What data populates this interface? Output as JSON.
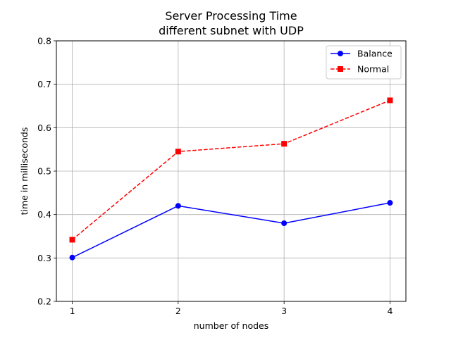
{
  "chart_data": {
    "type": "line",
    "title": "Server Processing Time",
    "subtitle": "different subnet with UDP",
    "xlabel": "number of nodes",
    "ylabel": "time in milliseconds",
    "x": [
      1,
      2,
      3,
      4
    ],
    "x_tick_labels": [
      "1",
      "2",
      "3",
      "4"
    ],
    "xlim": [
      0.85,
      4.15
    ],
    "ylim": [
      0.2,
      0.8
    ],
    "y_ticks": [
      0.2,
      0.3,
      0.4,
      0.5,
      0.6,
      0.7,
      0.8
    ],
    "y_tick_labels": [
      "0.2",
      "0.3",
      "0.4",
      "0.5",
      "0.6",
      "0.7",
      "0.8"
    ],
    "grid": true,
    "legend_position": "top-right",
    "series": [
      {
        "name": "Balance",
        "values": [
          0.301,
          0.42,
          0.38,
          0.427
        ],
        "color": "#0000ff",
        "line_style": "solid",
        "marker": "circle"
      },
      {
        "name": "Normal",
        "values": [
          0.342,
          0.545,
          0.563,
          0.663
        ],
        "color": "#ff0000",
        "line_style": "dashed",
        "marker": "square"
      }
    ]
  }
}
